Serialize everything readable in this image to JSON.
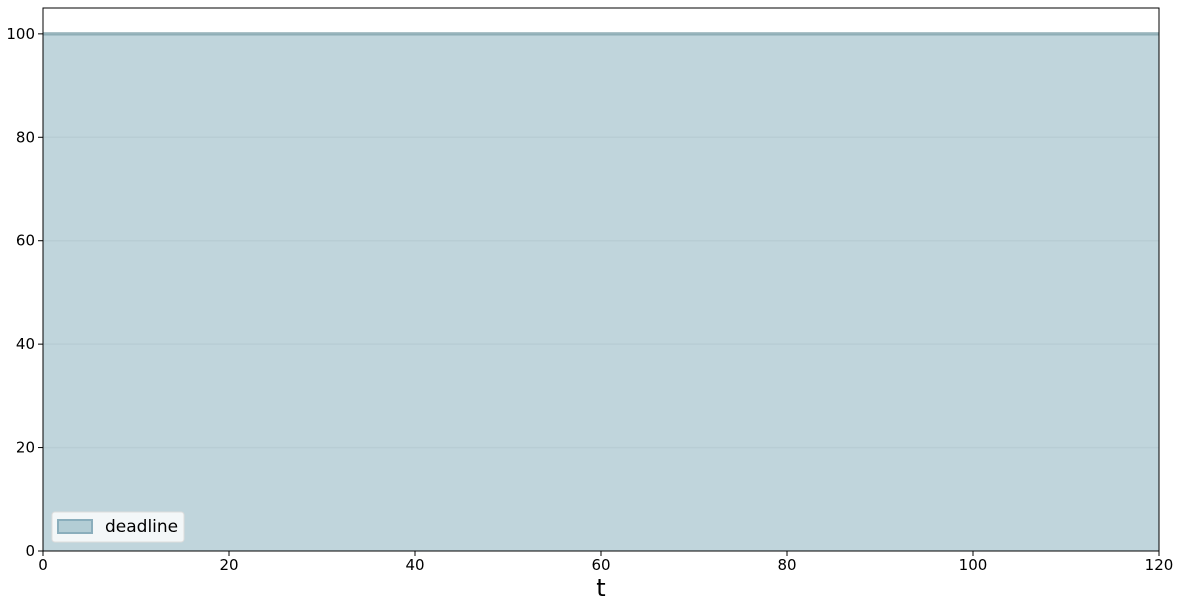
{
  "chart_data": {
    "type": "area",
    "title": "",
    "xlabel": "t",
    "ylabel": "",
    "xlim": [
      0,
      120
    ],
    "ylim": [
      0,
      105
    ],
    "x_ticks": [
      0,
      20,
      40,
      60,
      80,
      100,
      120
    ],
    "y_ticks": [
      0,
      20,
      40,
      60,
      80,
      100
    ],
    "grid": "horizontal",
    "legend_position": "lower-left",
    "series": [
      {
        "name": "deadline",
        "x": [
          0,
          120
        ],
        "y": [
          100,
          100
        ],
        "fill_color": "#c0d5dc",
        "line_color": "#7a9ea8"
      }
    ]
  },
  "colors": {
    "grid": "#b3c8cf",
    "axis": "#000000",
    "legend_patch_fill": "#b3cdd5",
    "legend_patch_edge": "#8aaebc"
  }
}
